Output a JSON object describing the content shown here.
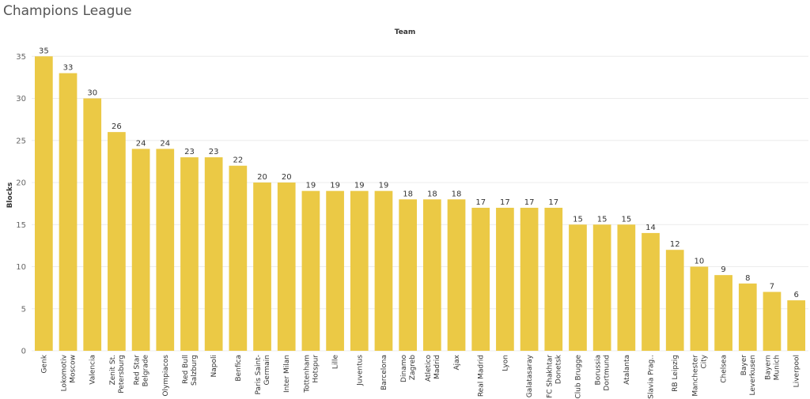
{
  "title": "Champions League",
  "chart_data": {
    "type": "bar",
    "title": "Champions League",
    "xlabel": "Team",
    "ylabel": "Blocks",
    "ylim": [
      0,
      37
    ],
    "yticks": [
      0,
      5,
      10,
      15,
      20,
      25,
      30,
      35
    ],
    "grid": true,
    "bar_color": "#EBC945",
    "categories": [
      [
        "Genk"
      ],
      [
        "Lokomotiv",
        "Moscow"
      ],
      [
        "Valencia"
      ],
      [
        "Zenit St.",
        "Petersburg"
      ],
      [
        "Red Star",
        "Belgrade"
      ],
      [
        "Olympiacos"
      ],
      [
        "Red Bull",
        "Salzburg"
      ],
      [
        "Napoli"
      ],
      [
        "Benfica"
      ],
      [
        "Paris Saint-",
        "Germain"
      ],
      [
        "Inter Milan"
      ],
      [
        "Tottenham",
        "Hotspur"
      ],
      [
        "Lille"
      ],
      [
        "Juventus"
      ],
      [
        "Barcelona"
      ],
      [
        "Dinamo",
        "Zagreb"
      ],
      [
        "Atletico",
        "Madrid"
      ],
      [
        "Ajax"
      ],
      [
        "Real Madrid"
      ],
      [
        "Lyon"
      ],
      [
        "Galatasaray"
      ],
      [
        "FC Shakhtar",
        "Donetsk"
      ],
      [
        "Club Brugge"
      ],
      [
        "Borussia",
        "Dortmund"
      ],
      [
        "Atalanta"
      ],
      [
        "Slavia Prag.."
      ],
      [
        "RB Leipzig"
      ],
      [
        "Manchester",
        "City"
      ],
      [
        "Chelsea"
      ],
      [
        "Bayer",
        "Leverkusen"
      ],
      [
        "Bayern",
        "Munich"
      ],
      [
        "Liverpool"
      ]
    ],
    "values": [
      35,
      33,
      30,
      26,
      24,
      24,
      23,
      23,
      22,
      20,
      20,
      19,
      19,
      19,
      19,
      18,
      18,
      18,
      17,
      17,
      17,
      17,
      15,
      15,
      15,
      14,
      12,
      10,
      9,
      8,
      7,
      6
    ]
  }
}
